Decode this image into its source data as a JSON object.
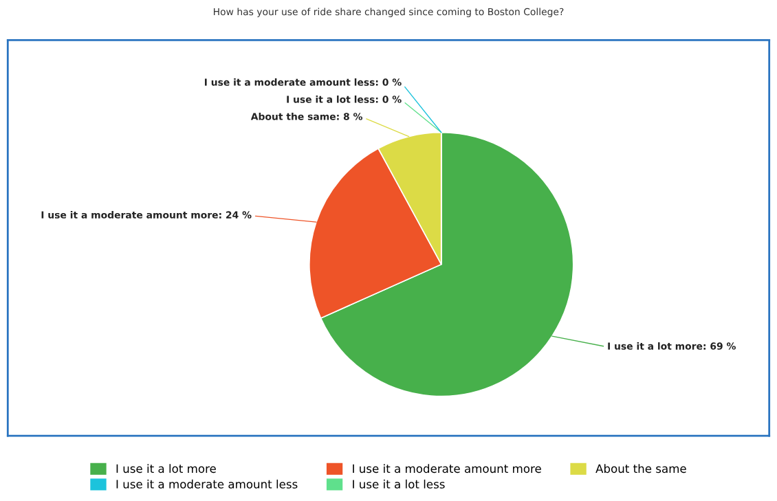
{
  "chart_data": {
    "type": "pie",
    "title": "How has your use of ride share changed since coming to Boston College?",
    "categories": [
      "I use it a lot more",
      "I use it a moderate amount more",
      "About the same",
      "I use it a moderate amount less",
      "I use it a lot less"
    ],
    "values": [
      69,
      24,
      8,
      0,
      0
    ],
    "colors": [
      "#47b04b",
      "#ee5428",
      "#dcdb46",
      "#1cc3dc",
      "#5fe08c"
    ],
    "value_labels": [
      "I use it a lot more: 69 %",
      "I use it a moderate amount more: 24 %",
      "About the same: 8 %",
      "I use it a moderate amount less: 0 %",
      "I use it a lot less: 0 %"
    ],
    "legend": "bottom"
  }
}
